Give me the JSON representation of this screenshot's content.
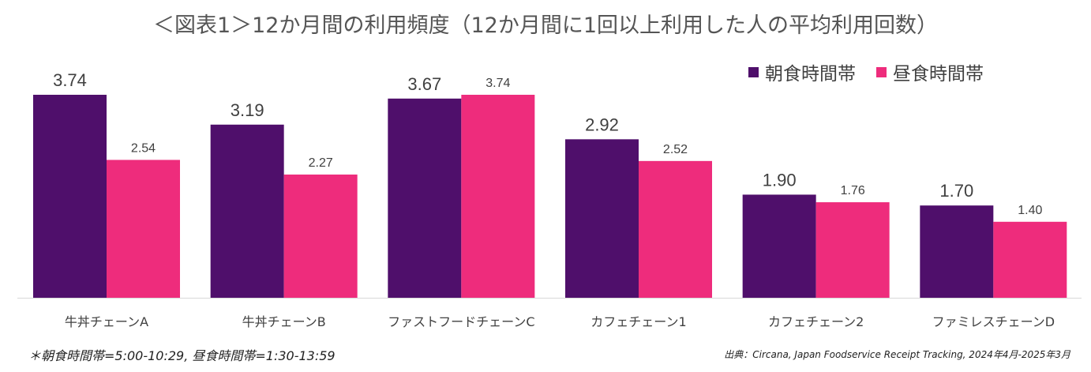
{
  "title": "＜図表1＞12か月間の利用頻度（12か月間に1回以上利用した人の平均利用回数）",
  "chart_data": {
    "type": "bar",
    "title": "＜図表1＞12か月間の利用頻度（12か月間に1回以上利用した人の平均利用回数）",
    "categories": [
      "牛丼チェーンA",
      "牛丼チェーンB",
      "ファストフードチェーンC",
      "カフェチェーン1",
      "カフェチェーン2",
      "ファミレスチェーンD"
    ],
    "series": [
      {
        "name": "朝食時間帯",
        "color": "#4f0f6b",
        "values": [
          3.74,
          3.19,
          3.67,
          2.92,
          1.9,
          1.7
        ],
        "labels": [
          "3.74",
          "3.19",
          "3.67",
          "2.92",
          "1.90",
          "1.70"
        ]
      },
      {
        "name": "昼食時間帯",
        "color": "#ee2c7c",
        "values": [
          2.54,
          2.27,
          3.74,
          2.52,
          1.76,
          1.4
        ],
        "labels": [
          "2.54",
          "2.27",
          "3.74",
          "2.52",
          "1.76",
          "1.40"
        ]
      }
    ],
    "ylim": [
      0,
      3.74
    ],
    "grid": false,
    "legend": "top-right",
    "xlabel": "",
    "ylabel": ""
  },
  "footnote_left": "＊朝食時間帯=5:00-10:29, 昼食時間帯=1:30-13:59",
  "footnote_right": "出典：Circana, Japan Foodservice Receipt Tracking, 2024年4月-2025年3月"
}
